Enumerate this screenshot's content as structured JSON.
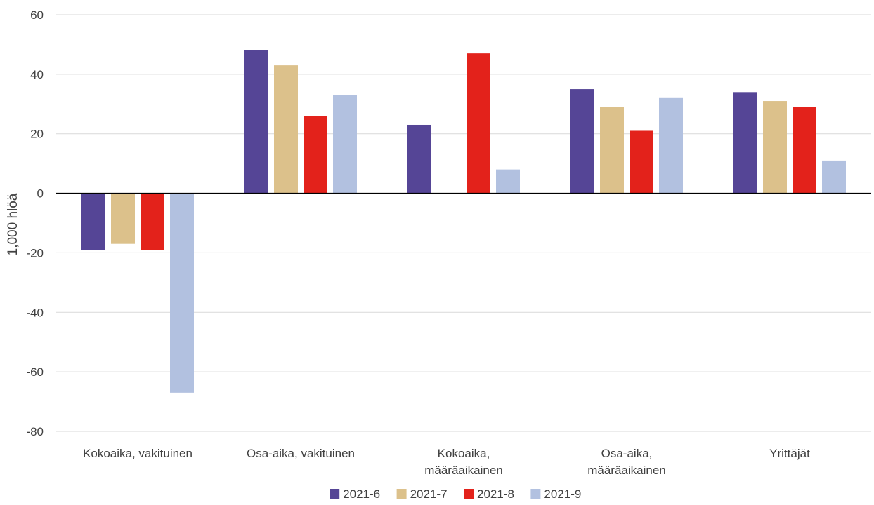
{
  "chart_data": {
    "type": "bar",
    "title": "",
    "xlabel": "",
    "ylabel": "1,000 hlöä",
    "ylim": [
      -80,
      60
    ],
    "yticks": [
      -80,
      -60,
      -40,
      -20,
      0,
      20,
      40,
      60
    ],
    "grid": true,
    "legend_position": "bottom",
    "categories": [
      [
        "Kokoaika, vakituinen"
      ],
      [
        "Osa-aika, vakituinen"
      ],
      [
        "Kokoaika,",
        "määräaikainen"
      ],
      [
        "Osa-aika,",
        "määräaikainen"
      ],
      [
        "Yrittäjät"
      ]
    ],
    "series": [
      {
        "name": "2021-6",
        "color": "#554596",
        "values": [
          -19,
          48,
          23,
          35,
          34
        ]
      },
      {
        "name": "2021-7",
        "color": "#DCC18B",
        "values": [
          -17,
          43,
          0,
          29,
          31
        ]
      },
      {
        "name": "2021-8",
        "color": "#E3221B",
        "values": [
          -19,
          26,
          47,
          21,
          29
        ]
      },
      {
        "name": "2021-9",
        "color": "#B2C1E0",
        "values": [
          -67,
          33,
          8,
          32,
          11
        ]
      }
    ]
  }
}
